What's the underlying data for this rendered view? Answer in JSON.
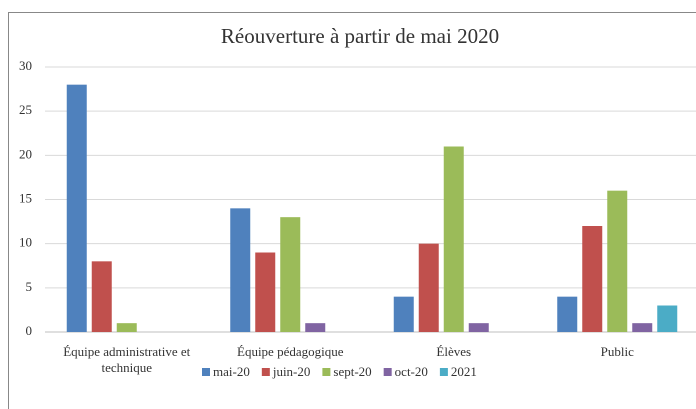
{
  "chart_data": {
    "type": "bar",
    "title": "Réouverture à partir de mai 2020",
    "categories": [
      "Équipe administrative et technique",
      "Équipe pédagogique",
      "Élèves",
      "Public"
    ],
    "series": [
      {
        "name": "mai-20",
        "color": "#4f81bd",
        "values": [
          28,
          14,
          4,
          4
        ]
      },
      {
        "name": "juin-20",
        "color": "#c0504d",
        "values": [
          8,
          9,
          10,
          12
        ]
      },
      {
        "name": "sept-20",
        "color": "#9bbb59",
        "values": [
          1,
          13,
          21,
          16
        ]
      },
      {
        "name": "oct-20",
        "color": "#8064a2",
        "values": [
          0,
          1,
          1,
          1
        ]
      },
      {
        "name": "2021",
        "color": "#4bacc6",
        "values": [
          0,
          0,
          0,
          3
        ]
      }
    ],
    "ylim": [
      0,
      30
    ],
    "yticks": [
      0,
      5,
      10,
      15,
      20,
      25,
      30
    ],
    "grid": true,
    "legend": "bottom"
  }
}
